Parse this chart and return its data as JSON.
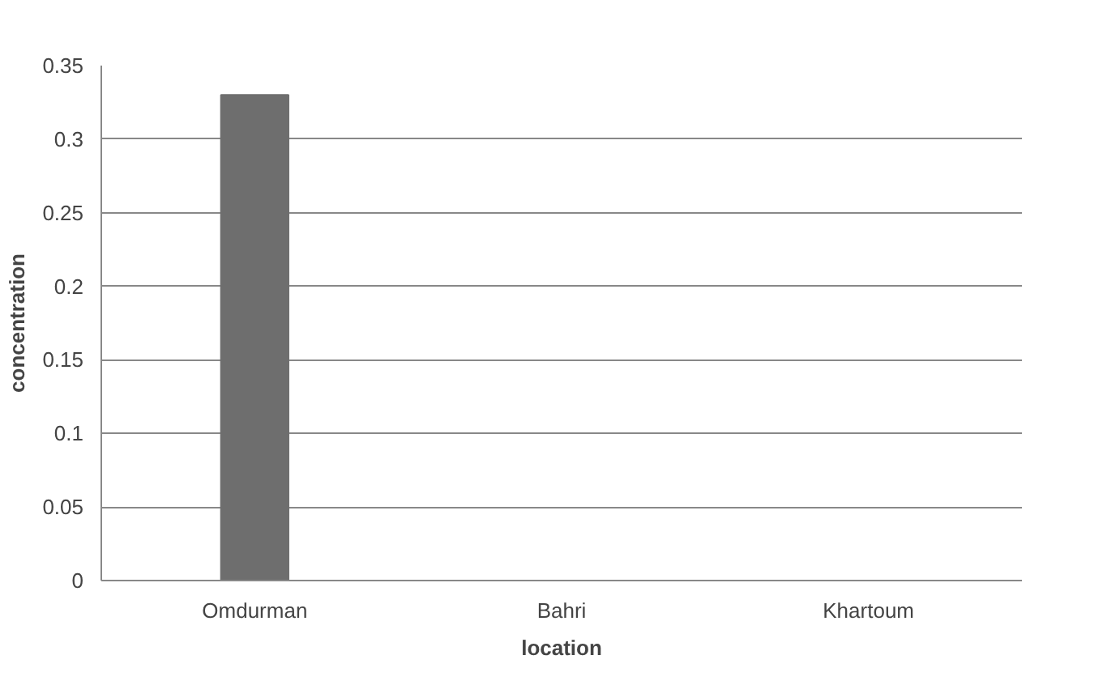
{
  "chart_data": {
    "type": "bar",
    "xlabel": "location",
    "ylabel": "concentration",
    "categories": [
      "Omdurman",
      "Bahri",
      "Khartoum"
    ],
    "values": [
      0.33,
      0,
      0
    ],
    "color": "#6e6e6e",
    "ylim": [
      0,
      0.35
    ],
    "yticks": [
      0,
      0.05,
      0.1,
      0.15,
      0.2,
      0.25,
      0.3,
      0.35
    ],
    "grid": "y"
  }
}
